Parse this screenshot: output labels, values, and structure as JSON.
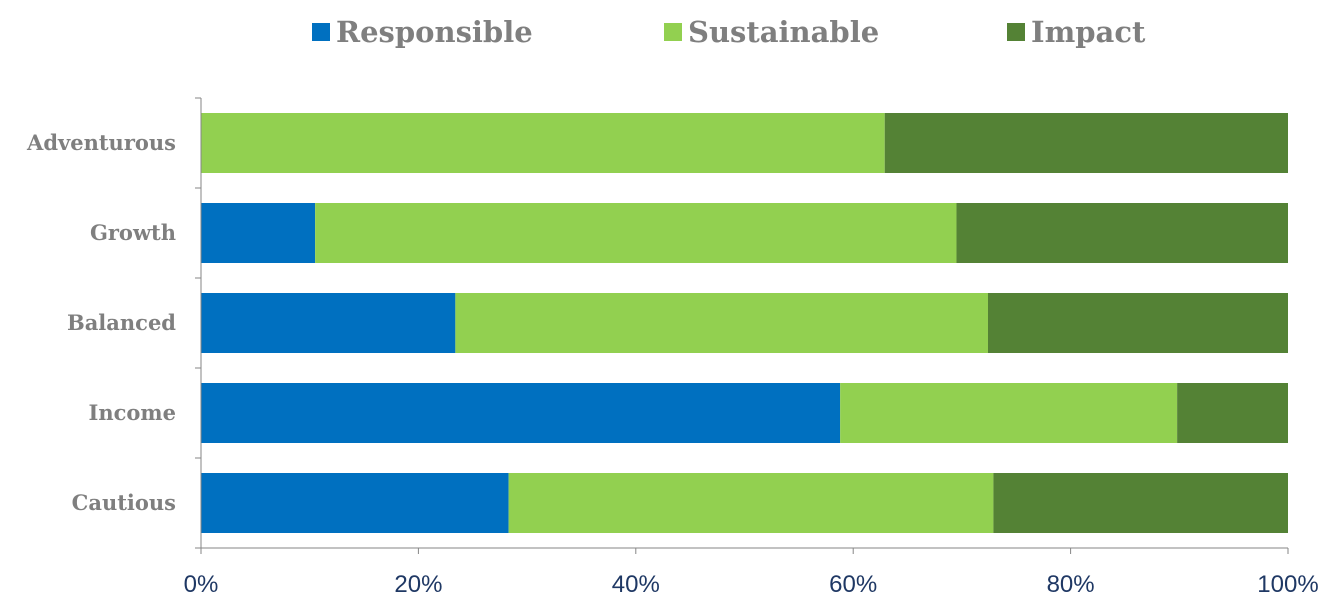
{
  "chart_data": {
    "type": "bar",
    "orientation": "horizontal",
    "stacked": "percent",
    "title": "",
    "xlabel": "",
    "ylabel": "",
    "categories": [
      "Adventurous",
      "Growth",
      "Balanced",
      "Income",
      "Cautious"
    ],
    "series": [
      {
        "name": "Responsible",
        "color": "#0070c0",
        "values": [
          0,
          10.5,
          23.4,
          58.8,
          28.3
        ]
      },
      {
        "name": "Sustainable",
        "color": "#92d050",
        "values": [
          62.9,
          59.0,
          49.0,
          31.0,
          44.6
        ]
      },
      {
        "name": "Impact",
        "color": "#548235",
        "values": [
          37.1,
          30.5,
          27.6,
          10.2,
          27.1
        ]
      }
    ],
    "xticks": [
      "0%",
      "20%",
      "40%",
      "60%",
      "80%",
      "100%"
    ],
    "xlim": [
      0,
      100
    ],
    "grid": false,
    "legend_position": "top"
  }
}
